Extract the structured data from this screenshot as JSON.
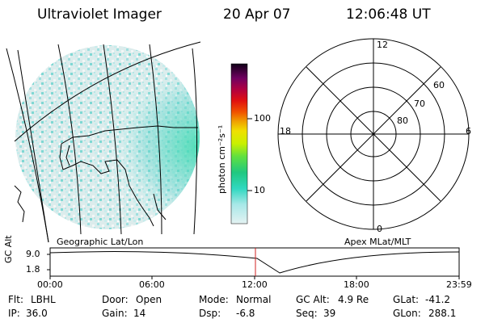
{
  "header": {
    "instrument": "Ultraviolet Imager",
    "date": "20 Apr 07",
    "time": "12:06:48 UT"
  },
  "colorbar": {
    "label": "photon cm⁻²s⁻¹",
    "ticks": [
      "100",
      "10"
    ],
    "scale": "log",
    "colors": [
      "#e0f0f0",
      "#b0e8e8",
      "#40d8c8",
      "#20c890",
      "#60e040",
      "#c8f000",
      "#f0e000",
      "#f0a000",
      "#f05000",
      "#e01000",
      "#c00040",
      "#800060",
      "#400040",
      "#100010"
    ]
  },
  "polar_plot": {
    "mlt_labels": {
      "top": "12",
      "bottom": "0",
      "left": "18",
      "right": "6"
    },
    "lat_labels": [
      "60",
      "70",
      "80"
    ]
  },
  "panel_labels": {
    "left": "Geographic Lat/Lon",
    "right": "Apex MLat/MLT"
  },
  "orbit_plot": {
    "y_label": "GC Alt",
    "y_ticks": [
      "9.0",
      "1.8"
    ],
    "x_ticks": [
      "00:00",
      "06:00",
      "12:00",
      "18:00",
      "23:59"
    ],
    "current_time_marker": "12:06:48"
  },
  "info": {
    "flt_label": "Flt:",
    "flt_value": "LBHL",
    "ip_label": "IP:",
    "ip_value": "36.0",
    "door_label": "Door:",
    "door_value": "Open",
    "gain_label": "Gain:",
    "gain_value": "14",
    "mode_label": "Mode:",
    "mode_value": "Normal",
    "dsp_label": "Dsp:",
    "dsp_value": "-6.8",
    "gcalt_label": "GC Alt:",
    "gcalt_value": "4.9 Re",
    "seq_label": "Seq:",
    "seq_value": "39",
    "glat_label": "GLat:",
    "glat_value": "-41.2",
    "glon_label": "GLon:",
    "glon_value": "288.1"
  }
}
